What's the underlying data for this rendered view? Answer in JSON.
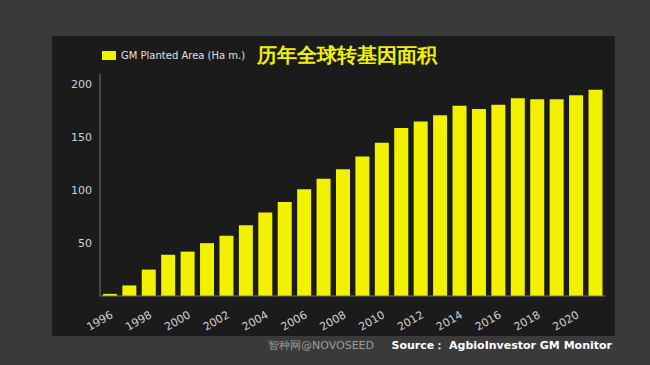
{
  "chart_data": {
    "type": "bar",
    "title": "历年全球转基因面积",
    "source": "Source： AgbioInvestor GM Monitor",
    "watermark": "智种网@NOVOSEED",
    "categories": [
      "1996",
      null,
      "1998",
      null,
      "2000",
      null,
      "2002",
      null,
      "2004",
      null,
      "2006",
      null,
      "2008",
      null,
      "2010",
      null,
      "2012",
      null,
      "2014",
      null,
      "2016",
      null,
      "2018",
      null,
      "2020",
      null
    ],
    "series": [
      {
        "name": "GM Planted Area (Ha m.)",
        "color": "#f2f200",
        "values": [
          2,
          10,
          25,
          39,
          42,
          50,
          57,
          67,
          79,
          89,
          101,
          111,
          120,
          132,
          145,
          159,
          165,
          171,
          180,
          177,
          181,
          187,
          186,
          186,
          190,
          195
        ]
      }
    ],
    "ylim": [
      0,
      210
    ],
    "yticks": [
      50,
      100,
      150,
      200
    ],
    "grid": false,
    "legend": "upper left"
  }
}
